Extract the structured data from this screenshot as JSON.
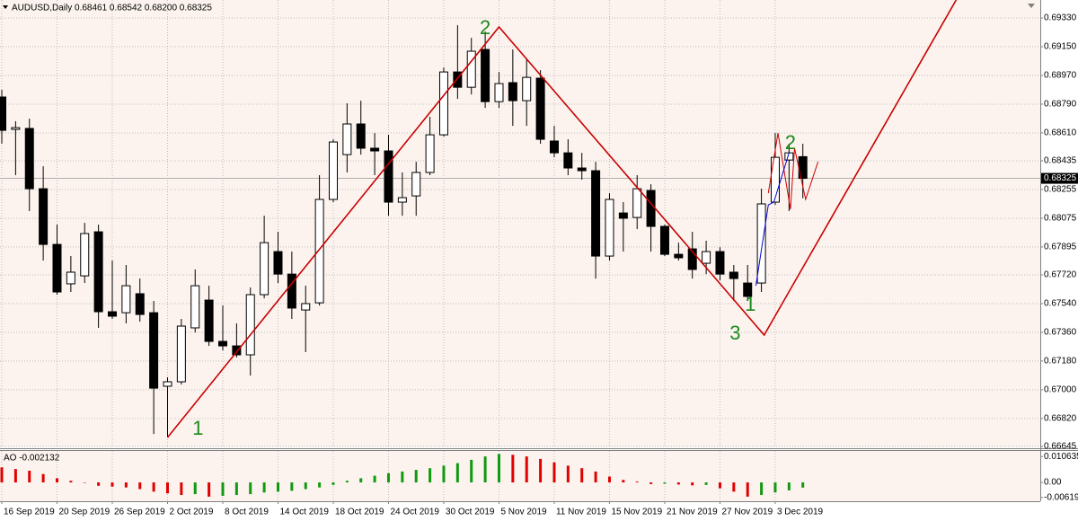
{
  "chart_data": [
    {
      "type": "candlestick",
      "title": "AUDUSD,Daily  0.68461 0.68542 0.68200 0.68325",
      "categories": [
        "16 Sep 2019",
        null,
        null,
        null,
        "20 Sep 2019",
        null,
        null,
        null,
        "26 Sep 2019",
        null,
        null,
        null,
        "2 Oct 2019",
        null,
        null,
        null,
        "8 Oct 2019",
        null,
        null,
        null,
        "14 Oct 2019",
        null,
        null,
        null,
        "18 Oct 2019",
        null,
        null,
        null,
        "24 Oct 2019",
        null,
        null,
        null,
        "30 Oct 2019",
        null,
        null,
        null,
        "5 Nov 2019",
        null,
        null,
        null,
        "11 Nov 2019",
        null,
        null,
        null,
        "15 Nov 2019",
        null,
        null,
        null,
        "21 Nov 2019",
        null,
        null,
        null,
        "27 Nov 2019",
        null,
        null,
        null,
        "3 Dec 2019",
        null,
        null
      ],
      "open": [
        0.68835,
        0.68632,
        0.68638,
        0.6826,
        0.67911,
        0.67664,
        0.67714,
        0.6799,
        0.67489,
        0.67483,
        0.67602,
        0.67483,
        0.67022,
        0.6705,
        0.67388,
        0.67562,
        0.67303,
        0.67275,
        0.67219,
        0.67596,
        0.67866,
        0.67725,
        0.675,
        0.67545,
        0.68193,
        0.68474,
        0.68666,
        0.68514,
        0.68497,
        0.68176,
        0.68215,
        0.68362,
        0.68598,
        0.68992,
        0.68896,
        0.69133,
        0.68806,
        0.68925,
        0.68812,
        0.68953,
        0.68559,
        0.68485,
        0.6839,
        0.68373,
        0.67838,
        0.68108,
        0.6808,
        0.68249,
        0.68024,
        0.67849,
        0.67883,
        0.67793,
        0.67866,
        0.67737,
        0.67669,
        0.67669,
        0.68176,
        0.6844,
        0.68461
      ],
      "high": [
        0.6888,
        0.68683,
        0.68699,
        0.68401,
        0.68035,
        0.67838,
        0.68046,
        0.68035,
        0.6781,
        0.67782,
        0.67697,
        0.67557,
        0.67078,
        0.67444,
        0.67754,
        0.67652,
        0.67528,
        0.67416,
        0.67641,
        0.68091,
        0.6799,
        0.67866,
        0.67652,
        0.68345,
        0.6857,
        0.68795,
        0.68812,
        0.68609,
        0.68598,
        0.68362,
        0.68429,
        0.68711,
        0.6902,
        0.69285,
        0.69206,
        0.69246,
        0.68992,
        0.69133,
        0.69077,
        0.69003,
        0.68654,
        0.6857,
        0.68485,
        0.68429,
        0.68232,
        0.68176,
        0.68345,
        0.68288,
        0.68035,
        0.67922,
        0.6799,
        0.67934,
        0.67894,
        0.67782,
        0.67782,
        0.6826,
        0.68609,
        0.68542,
        0.68542
      ],
      "low": [
        0.68542,
        0.68345,
        0.6812,
        0.6781,
        0.67596,
        0.67613,
        0.67669,
        0.67388,
        0.67444,
        0.67416,
        0.67427,
        0.66723,
        0.66701,
        0.67033,
        0.67359,
        0.67275,
        0.67247,
        0.67202,
        0.67089,
        0.67573,
        0.67669,
        0.67444,
        0.67236,
        0.67528,
        0.68176,
        0.68362,
        0.68474,
        0.68345,
        0.68091,
        0.68091,
        0.68091,
        0.68345,
        0.68587,
        0.68823,
        0.68851,
        0.68767,
        0.68767,
        0.68654,
        0.68654,
        0.68542,
        0.68457,
        0.68345,
        0.68317,
        0.67697,
        0.6781,
        0.67866,
        0.68007,
        0.67866,
        0.67838,
        0.6781,
        0.67697,
        0.67725,
        0.67686,
        0.67557,
        0.67557,
        0.67613,
        0.68159,
        0.6812,
        0.682
      ],
      "close": [
        0.68626,
        0.68643,
        0.6826,
        0.67911,
        0.67613,
        0.67737,
        0.67979,
        0.67489,
        0.67461,
        0.67652,
        0.67472,
        0.6701,
        0.6705,
        0.67399,
        0.67652,
        0.67303,
        0.67275,
        0.67219,
        0.67596,
        0.67922,
        0.67725,
        0.67512,
        0.6754,
        0.68193,
        0.68553,
        0.68666,
        0.68514,
        0.68497,
        0.68176,
        0.68204,
        0.68362,
        0.68598,
        0.68992,
        0.68896,
        0.69122,
        0.68806,
        0.68919,
        0.68812,
        0.68958,
        0.6857,
        0.68485,
        0.6839,
        0.68373,
        0.67838,
        0.68193,
        0.68075,
        0.6826,
        0.68024,
        0.67849,
        0.67827,
        0.67754,
        0.67866,
        0.67725,
        0.67697,
        0.67585,
        0.68165,
        0.68457,
        0.68485,
        0.68325
      ],
      "up_color": "#ffffff",
      "down_color": "#000000",
      "xlim": [
        -0.13,
        75.19
      ],
      "ylim": [
        0.66639,
        0.69443
      ],
      "yticks": [
        {
          "value": 0.6933,
          "label": "0.69330"
        },
        {
          "value": 0.6915,
          "label": "0.69150"
        },
        {
          "value": 0.6897,
          "label": "0.68970"
        },
        {
          "value": 0.6879,
          "label": "0.68790"
        },
        {
          "value": 0.6861,
          "label": "0.68610"
        },
        0.68435,
        0.68255,
        0.68075,
        0.67895,
        {
          "value": 0.6772,
          "label": "0.67720"
        },
        {
          "value": 0.6754,
          "label": "0.67540"
        },
        {
          "value": 0.6736,
          "label": "0.67360"
        },
        {
          "value": 0.6718,
          "label": "0.67180"
        },
        {
          "value": 0.67,
          "label": "0.67000"
        },
        {
          "value": 0.6682,
          "label": "0.66820"
        },
        0.66645
      ],
      "grid": true,
      "last_price_line": true,
      "lines": [
        {
          "color": "#c80000",
          "x": [
            12,
            36,
            55.2,
            69.1
          ],
          "values": [
            0.66701,
            0.69274,
            0.67343,
            0.69443
          ]
        },
        {
          "color": "#d00000",
          "x": [
            55.5,
            56.2,
            57.1,
            57.4,
            58.2,
            59.1
          ],
          "values": [
            0.68232,
            0.68609,
            0.68131,
            0.68514,
            0.68193,
            0.68429
          ]
        },
        {
          "color": "#0000d0",
          "x": [
            54.6,
            55.5,
            55.9,
            57.0
          ],
          "values": [
            0.67652,
            0.68159,
            0.68176,
            0.68485
          ]
        }
      ],
      "annotations": [
        {
          "text": "1",
          "x": 14.2,
          "y": 0.66751
        },
        {
          "text": "2",
          "x": 35,
          "y": 0.69262
        },
        {
          "text": "3",
          "x": 53.1,
          "y": 0.67348
        },
        {
          "text": "1",
          "x": 54.2,
          "y": 0.67528
        },
        {
          "text": "2",
          "x": 57.1,
          "y": 0.68542
        }
      ]
    },
    {
      "type": "histogram-osc",
      "title": "AO -0.002132",
      "values": [
        0.006192,
        0.005504,
        0.004816,
        0.00344,
        0.00172,
        0.000688,
        -0.000172,
        -0.001376,
        -0.00172,
        -0.002064,
        -0.002752,
        -0.003784,
        -0.004472,
        -0.00516,
        -0.004816,
        -0.005848,
        -0.005504,
        -0.00516,
        -0.004816,
        -0.004128,
        -0.003784,
        -0.00344,
        -0.002752,
        -0.002064,
        -0.001032,
        0.000688,
        0.00172,
        0.002752,
        0.003784,
        0.004472,
        0.00516,
        0.005848,
        0.00688,
        0.007912,
        0.009288,
        0.010664,
        0.011696,
        0.011352,
        0.010664,
        0.009632,
        0.008256,
        0.00688,
        0.005848,
        0.004472,
        0.002408,
        0.001032,
        0.000344,
        -0.000688,
        -0.000516,
        -0.00086,
        -0.001204,
        -0.001032,
        -0.002408,
        -0.003784,
        -0.005848,
        -0.00516,
        -0.004128,
        -0.003268,
        -0.002132
      ],
      "up_color": "#109a10",
      "down_color": "#e00000",
      "ylim": [
        -0.007726,
        0.01293
      ],
      "yticks": [
        0.010635,
        {
          "value": 0,
          "label": "0.00"
        },
        -0.006196
      ]
    }
  ]
}
